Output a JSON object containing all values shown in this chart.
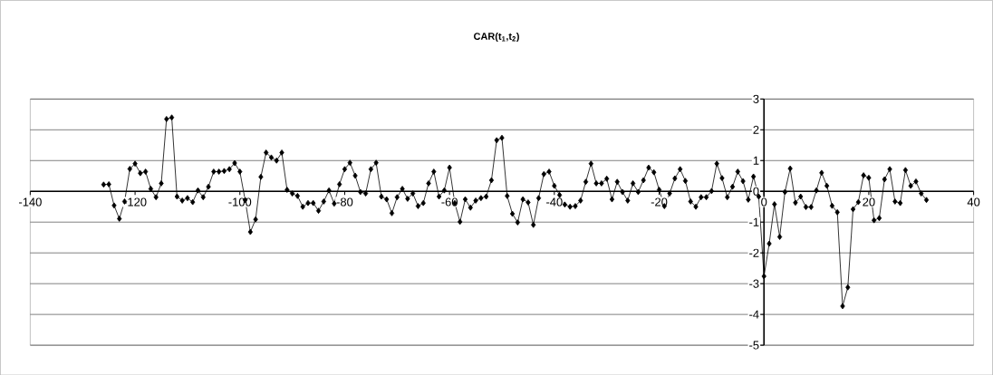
{
  "chart_data": {
    "type": "line",
    "title": "CAR(t$_{1}$,t$_{2}$)",
    "x": [
      -126,
      -125,
      -124,
      -123,
      -122,
      -121,
      -120,
      -119,
      -118,
      -117,
      -116,
      -115,
      -114,
      -113,
      -112,
      -111,
      -110,
      -109,
      -108,
      -107,
      -106,
      -105,
      -104,
      -103,
      -102,
      -101,
      -100,
      -99,
      -98,
      -97,
      -96,
      -95,
      -94,
      -93,
      -92,
      -91,
      -90,
      -89,
      -88,
      -87,
      -86,
      -85,
      -84,
      -83,
      -82,
      -81,
      -80,
      -79,
      -78,
      -77,
      -76,
      -75,
      -74,
      -73,
      -72,
      -71,
      -70,
      -69,
      -68,
      -67,
      -66,
      -65,
      -64,
      -63,
      -62,
      -61,
      -60,
      -59,
      -58,
      -57,
      -56,
      -55,
      -54,
      -53,
      -52,
      -51,
      -50,
      -49,
      -48,
      -47,
      -46,
      -45,
      -44,
      -43,
      -42,
      -41,
      -40,
      -39,
      -38,
      -37,
      -36,
      -35,
      -34,
      -33,
      -32,
      -31,
      -30,
      -29,
      -28,
      -27,
      -26,
      -25,
      -24,
      -23,
      -22,
      -21,
      -20,
      -19,
      -18,
      -17,
      -16,
      -15,
      -14,
      -13,
      -12,
      -11,
      -10,
      -9,
      -8,
      -7,
      -6,
      -5,
      -4,
      -3,
      -2,
      -1,
      0,
      1,
      2,
      3,
      4,
      5,
      6,
      7,
      8,
      9,
      10,
      11,
      12,
      13,
      14,
      15,
      16,
      17,
      18,
      19,
      20,
      21,
      22,
      23,
      24,
      25,
      26,
      27,
      28,
      29,
      30,
      31
    ],
    "values": [
      0.22,
      0.23,
      -0.46,
      -0.89,
      -0.33,
      0.73,
      0.9,
      0.59,
      0.64,
      0.08,
      -0.19,
      0.26,
      2.35,
      2.4,
      -0.17,
      -0.3,
      -0.22,
      -0.35,
      0.03,
      -0.19,
      0.15,
      0.64,
      0.64,
      0.66,
      0.72,
      0.92,
      0.64,
      -0.28,
      -1.32,
      -0.91,
      0.47,
      1.26,
      1.1,
      1.0,
      1.26,
      0.05,
      -0.07,
      -0.15,
      -0.5,
      -0.38,
      -0.38,
      -0.63,
      -0.33,
      0.03,
      -0.4,
      0.23,
      0.72,
      0.93,
      0.51,
      -0.02,
      -0.07,
      0.72,
      0.93,
      -0.17,
      -0.26,
      -0.71,
      -0.19,
      0.08,
      -0.24,
      -0.07,
      -0.48,
      -0.38,
      0.26,
      0.64,
      -0.17,
      0.03,
      0.77,
      -0.38,
      -0.99,
      -0.26,
      -0.53,
      -0.3,
      -0.22,
      -0.17,
      0.36,
      1.66,
      1.74,
      -0.15,
      -0.73,
      -1.01,
      -0.26,
      -0.36,
      -1.09,
      -0.22,
      0.56,
      0.64,
      0.18,
      -0.12,
      -0.43,
      -0.5,
      -0.48,
      -0.3,
      0.31,
      0.9,
      0.26,
      0.26,
      0.41,
      -0.26,
      0.31,
      -0.02,
      -0.3,
      0.26,
      -0.02,
      0.36,
      0.77,
      0.62,
      0.05,
      -0.48,
      -0.07,
      0.42,
      0.72,
      0.34,
      -0.33,
      -0.5,
      -0.19,
      -0.19,
      0.01,
      0.9,
      0.43,
      -0.19,
      0.15,
      0.64,
      0.33,
      -0.27,
      0.48,
      -0.17,
      -2.76,
      -1.7,
      -0.42,
      -1.48,
      -0.02,
      0.74,
      -0.37,
      -0.17,
      -0.51,
      -0.51,
      0.03,
      0.6,
      0.18,
      -0.47,
      -0.68,
      -3.73,
      -3.12,
      -0.58,
      -0.35,
      0.52,
      0.44,
      -0.94,
      -0.87,
      0.39,
      0.72,
      -0.33,
      -0.38,
      0.69,
      0.18,
      0.32,
      -0.07,
      -0.28
    ],
    "color": "#000000",
    "marker": "diamond",
    "line_style": "solid",
    "grid": "y",
    "xlim": [
      -140,
      40
    ],
    "xticks": [
      -140,
      -120,
      -100,
      -80,
      -60,
      -40,
      -20,
      0,
      20,
      40
    ],
    "ylim": [
      -5,
      3
    ],
    "yticks": [
      -5,
      -4,
      -3,
      -2,
      -1,
      0,
      1,
      2,
      3
    ]
  }
}
